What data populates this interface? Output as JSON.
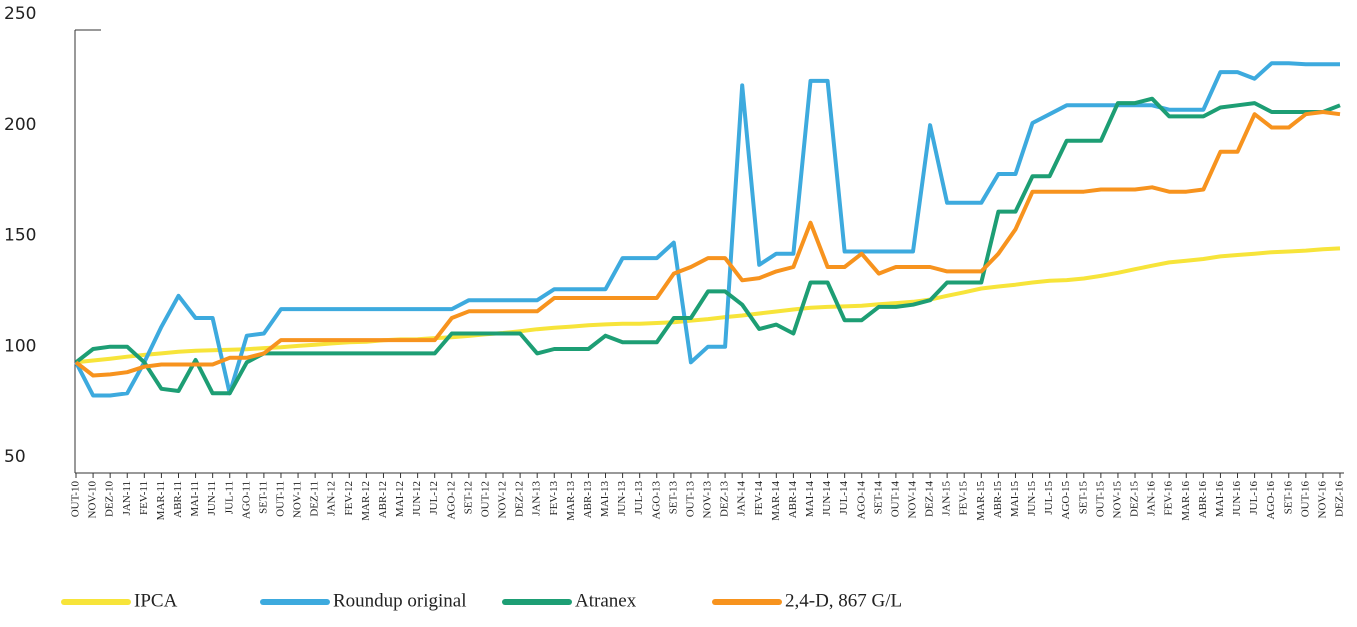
{
  "chart_data": {
    "type": "line",
    "categories": [
      "OUT-10",
      "NOV-10",
      "DEZ-10",
      "JAN-11",
      "FEV-11",
      "MAR-11",
      "ABR-11",
      "MAI-11",
      "JUN-11",
      "JUL-11",
      "AGO-11",
      "SET-11",
      "OUT-11",
      "NOV-11",
      "DEZ-11",
      "JAN-12",
      "FEV-12",
      "MAR-12",
      "ABR-12",
      "MAI-12",
      "JUN-12",
      "JUL-12",
      "AGO-12",
      "SET-12",
      "OUT-12",
      "NOV-12",
      "DEZ-12",
      "JAN-13",
      "FEV-13",
      "MAR-13",
      "ABR-13",
      "MAI-13",
      "JUN-13",
      "JUL-13",
      "AGO-13",
      "SET-13",
      "OUT-13",
      "NOV-13",
      "DEZ-13",
      "JAN-14",
      "FEV-14",
      "MAR-14",
      "ABR-14",
      "MAI-14",
      "JUN-14",
      "JUL-14",
      "AGO-14",
      "SET-14",
      "OUT-14",
      "NOV-14",
      "DEZ-14",
      "JAN-15",
      "FEV-15",
      "MAR-15",
      "ABR-15",
      "MAI-15",
      "JUN-15",
      "JUL-15",
      "AGO-15",
      "SET-15",
      "OUT-15",
      "NOV-15",
      "DEZ-15",
      "JAN-16",
      "FEV-16",
      "MAR-16",
      "ABR-16",
      "MAI-16",
      "JUN-16",
      "JUL-16",
      "AGO-16",
      "SET-16",
      "OUT-16",
      "NOV-16",
      "DEZ-16"
    ],
    "series": [
      {
        "name": "IPCA",
        "color": "#f7e43a",
        "values": [
          100,
          100.8,
          101.6,
          102.5,
          103.3,
          104,
          104.7,
          105.2,
          105.4,
          105.6,
          105.9,
          106.4,
          106.8,
          107.4,
          107.9,
          108.5,
          109,
          109.3,
          109.9,
          110.3,
          110.4,
          110.9,
          111.3,
          111.9,
          112.6,
          113.2,
          114,
          114.9,
          115.6,
          116.1,
          116.7,
          117.1,
          117.4,
          117.4,
          117.7,
          118.1,
          118.8,
          119.5,
          120.4,
          121.1,
          122,
          122.9,
          123.8,
          124.6,
          125,
          125.2,
          125.5,
          126.2,
          126.7,
          127.3,
          128.3,
          130,
          131.6,
          133.3,
          134.2,
          135,
          136,
          136.8,
          137.1,
          137.8,
          139,
          140.4,
          142,
          143.6,
          145.1,
          145.8,
          146.6,
          147.8,
          148.4,
          149,
          149.7,
          150,
          150.4,
          151,
          151.4
        ]
      },
      {
        "name": "Roundup original",
        "color": "#3daade",
        "values": [
          100,
          85,
          85,
          86,
          100,
          116,
          130,
          120,
          120,
          86,
          112,
          113,
          124,
          124,
          124,
          124,
          124,
          124,
          124,
          124,
          124,
          124,
          124,
          128,
          128,
          128,
          128,
          128,
          133,
          133,
          133,
          133,
          147,
          147,
          147,
          154,
          100,
          107,
          107,
          225,
          144,
          149,
          149,
          227,
          227,
          150,
          150,
          150,
          150,
          150,
          207,
          172,
          172,
          172,
          185,
          185,
          208,
          212,
          216,
          216,
          216,
          216,
          216,
          216,
          214,
          214,
          214,
          231,
          231,
          228,
          235,
          235,
          234.5,
          234.5,
          234.5
        ]
      },
      {
        "name": "Atranex",
        "color": "#1d9e74",
        "values": [
          100,
          106,
          107,
          107,
          100,
          88,
          87,
          101,
          86,
          86,
          100,
          104,
          104,
          104,
          104,
          104,
          104,
          104,
          104,
          104,
          104,
          104,
          113,
          113,
          113,
          113,
          113,
          104,
          106,
          106,
          106,
          112,
          109,
          109,
          109,
          120,
          120,
          132,
          132,
          126,
          115,
          117,
          113,
          136,
          136,
          119,
          119,
          125,
          125,
          126,
          128,
          136,
          136,
          136,
          168,
          168,
          184,
          184,
          200,
          200,
          200,
          217,
          217,
          219,
          211,
          211,
          211,
          215,
          216,
          217,
          213,
          213,
          213,
          213,
          216
        ]
      },
      {
        "name": "2,4-D, 867 G/L",
        "color": "#f7931e",
        "values": [
          100,
          94,
          94.5,
          95.5,
          98,
          99,
          99,
          99,
          99,
          102,
          102,
          104,
          110,
          110,
          110,
          110,
          110,
          110,
          110,
          110,
          110,
          110,
          120,
          123,
          123,
          123,
          123,
          123,
          129,
          129,
          129,
          129,
          129,
          129,
          129,
          140,
          143,
          147,
          147,
          137,
          138,
          141,
          143,
          163,
          143,
          143,
          149,
          140,
          143,
          143,
          143,
          141,
          141,
          141,
          149,
          160,
          177,
          177,
          177,
          177,
          178,
          178,
          178,
          179,
          177,
          177,
          178,
          195,
          195,
          212,
          206,
          206,
          212,
          213,
          212
        ]
      }
    ],
    "ylim": [
      50,
      250
    ],
    "yticks": [
      50,
      100,
      150,
      200,
      250
    ]
  }
}
